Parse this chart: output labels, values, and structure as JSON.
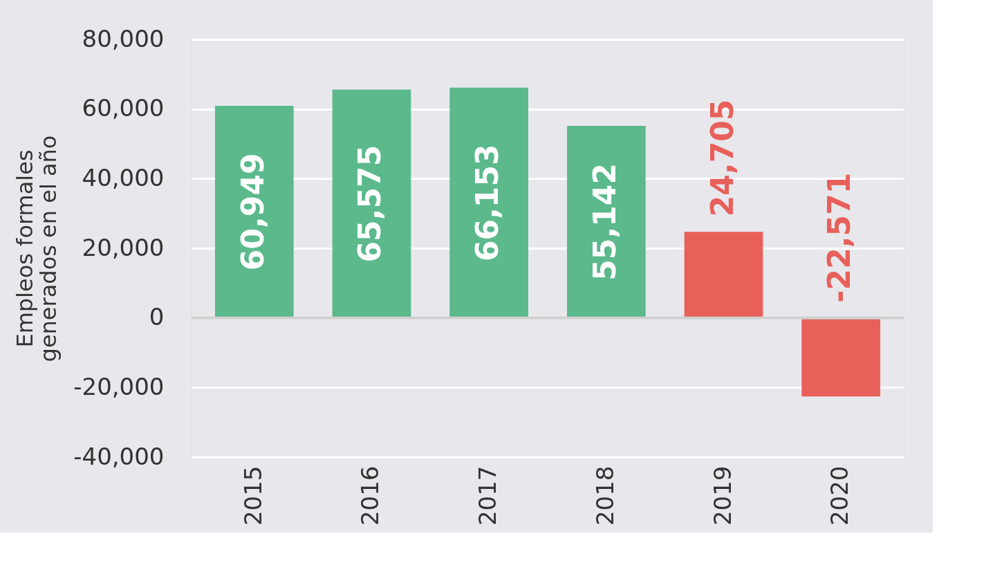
{
  "chart_data": {
    "type": "bar",
    "ylabel": "Empleos formales\ngenerados en el año",
    "categories": [
      "2015",
      "2016",
      "2017",
      "2018",
      "2019",
      "2020"
    ],
    "values": [
      60949,
      65575,
      66153,
      55142,
      24705,
      -22571
    ],
    "colors": [
      "#5bb98c",
      "#5bb98c",
      "#5bb98c",
      "#5bb98c",
      "#e8605a",
      "#e8605a"
    ],
    "value_labels": [
      "60,949",
      "65,575",
      "66,153",
      "55,142",
      "24,705",
      "-22,571"
    ],
    "ylim": [
      -40000,
      80000
    ],
    "yticks": [
      {
        "value": -40000,
        "label": "-40,000"
      },
      {
        "value": -20000,
        "label": "-20,000"
      },
      0,
      {
        "value": 20000,
        "label": "20,000"
      },
      {
        "value": 40000,
        "label": "40,000"
      },
      {
        "value": 60000,
        "label": "60,000"
      },
      {
        "value": 80000,
        "label": "80,000"
      }
    ],
    "grid": "y"
  }
}
